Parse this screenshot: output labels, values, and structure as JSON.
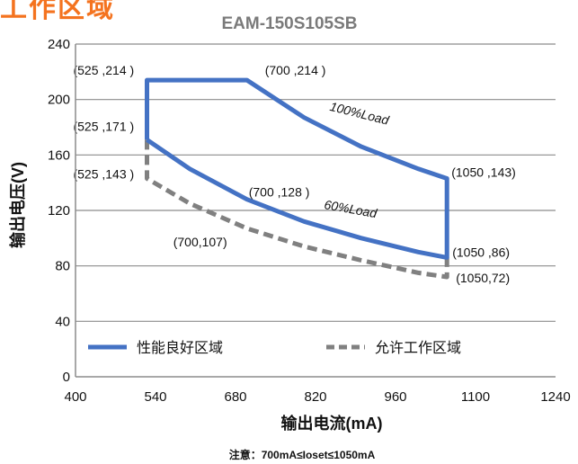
{
  "page_title": "工作区域",
  "chart_data": {
    "type": "line",
    "title": "EAM-150S105SB",
    "xlabel": "输出电流(mA)",
    "ylabel": "输出电压(V)",
    "xlim": [
      400,
      1240
    ],
    "ylim": [
      0,
      240
    ],
    "xticks": [
      400,
      540,
      680,
      820,
      960,
      1100,
      1240
    ],
    "yticks": [
      0,
      40,
      80,
      120,
      160,
      200,
      240
    ],
    "grid": "horizontal",
    "legend_position": "bottom-left",
    "series": [
      {
        "name": "性能良好区域",
        "style": "solid",
        "color": "#4472c4",
        "x": [
          525,
          525,
          700,
          800,
          900,
          1000,
          1050,
          1050,
          1000,
          900,
          800,
          700,
          600,
          525
        ],
        "y": [
          171,
          214,
          214,
          187,
          166,
          150,
          143,
          86,
          90,
          100,
          112,
          128,
          150,
          171
        ]
      },
      {
        "name": "允许工作区域",
        "style": "dashed",
        "color": "#808080",
        "x": [
          525,
          525,
          600,
          700,
          800,
          900,
          1000,
          1050,
          1050
        ],
        "y": [
          171,
          143,
          125,
          107,
          94,
          84,
          75,
          72,
          86
        ]
      }
    ],
    "annotations": [
      {
        "text": "(525 ,214 )",
        "x": 525,
        "y": 214
      },
      {
        "text": "(700 ,214 )",
        "x": 700,
        "y": 214
      },
      {
        "text": "(525 ,171 )",
        "x": 525,
        "y": 171
      },
      {
        "text": "(525 ,143 )",
        "x": 525,
        "y": 143
      },
      {
        "text": "(700 ,128 )",
        "x": 700,
        "y": 128
      },
      {
        "text": "(700,107)",
        "x": 700,
        "y": 107
      },
      {
        "text": "(1050 ,143)",
        "x": 1050,
        "y": 143
      },
      {
        "text": "(1050 ,86)",
        "x": 1050,
        "y": 86
      },
      {
        "text": "(1050,72)",
        "x": 1050,
        "y": 72
      }
    ],
    "curve_labels": [
      {
        "text": "100%Load",
        "x": 895,
        "y": 187
      },
      {
        "text": "60%Load",
        "x": 880,
        "y": 118
      }
    ],
    "note": "注意：700mA≤Ioset≤1050mA"
  }
}
